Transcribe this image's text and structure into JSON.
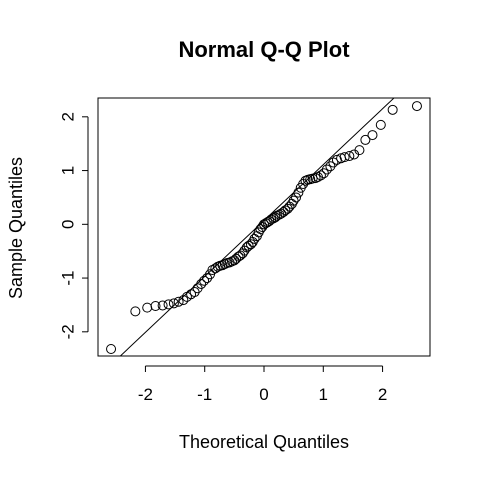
{
  "chart_data": {
    "type": "scatter",
    "title": "Normal Q-Q Plot",
    "xlabel": "Theoretical Quantiles",
    "ylabel": "Sample Quantiles",
    "xlim": [
      -2.8,
      2.8
    ],
    "ylim": [
      -2.45,
      2.35
    ],
    "x_ticks": [
      -2,
      -1,
      0,
      1,
      2
    ],
    "x_tick_labels": [
      "-2",
      "-1",
      "0",
      "1",
      "2"
    ],
    "y_ticks": [
      -2,
      -1,
      0,
      1,
      2
    ],
    "y_tick_labels": [
      "-2",
      "-1",
      "0",
      "1",
      "2"
    ],
    "grid": false,
    "reference_line": {
      "intercept": 0.07,
      "slope": 1.04
    },
    "points": [
      [
        -2.58,
        -2.32
      ],
      [
        -2.17,
        -1.62
      ],
      [
        -1.97,
        -1.55
      ],
      [
        -1.83,
        -1.52
      ],
      [
        -1.71,
        -1.51
      ],
      [
        -1.61,
        -1.49
      ],
      [
        -1.52,
        -1.47
      ],
      [
        -1.44,
        -1.44
      ],
      [
        -1.36,
        -1.41
      ],
      [
        -1.3,
        -1.35
      ],
      [
        -1.23,
        -1.3
      ],
      [
        -1.17,
        -1.26
      ],
      [
        -1.12,
        -1.19
      ],
      [
        -1.06,
        -1.11
      ],
      [
        -1.01,
        -1.05
      ],
      [
        -0.96,
        -1.0
      ],
      [
        -0.91,
        -0.93
      ],
      [
        -0.87,
        -0.85
      ],
      [
        -0.82,
        -0.82
      ],
      [
        -0.78,
        -0.79
      ],
      [
        -0.74,
        -0.77
      ],
      [
        -0.7,
        -0.76
      ],
      [
        -0.66,
        -0.74
      ],
      [
        -0.62,
        -0.72
      ],
      [
        -0.58,
        -0.71
      ],
      [
        -0.54,
        -0.69
      ],
      [
        -0.5,
        -0.67
      ],
      [
        -0.47,
        -0.64
      ],
      [
        -0.43,
        -0.6
      ],
      [
        -0.4,
        -0.58
      ],
      [
        -0.36,
        -0.54
      ],
      [
        -0.33,
        -0.49
      ],
      [
        -0.29,
        -0.43
      ],
      [
        -0.26,
        -0.4
      ],
      [
        -0.22,
        -0.37
      ],
      [
        -0.19,
        -0.33
      ],
      [
        -0.16,
        -0.27
      ],
      [
        -0.12,
        -0.22
      ],
      [
        -0.09,
        -0.15
      ],
      [
        -0.06,
        -0.09
      ],
      [
        -0.03,
        -0.05
      ],
      [
        0.0,
        0.0
      ],
      [
        0.03,
        0.02
      ],
      [
        0.06,
        0.04
      ],
      [
        0.09,
        0.06
      ],
      [
        0.12,
        0.09
      ],
      [
        0.16,
        0.11
      ],
      [
        0.19,
        0.13
      ],
      [
        0.22,
        0.16
      ],
      [
        0.26,
        0.18
      ],
      [
        0.29,
        0.2
      ],
      [
        0.33,
        0.23
      ],
      [
        0.36,
        0.26
      ],
      [
        0.4,
        0.29
      ],
      [
        0.43,
        0.33
      ],
      [
        0.47,
        0.38
      ],
      [
        0.5,
        0.44
      ],
      [
        0.54,
        0.5
      ],
      [
        0.58,
        0.59
      ],
      [
        0.62,
        0.68
      ],
      [
        0.66,
        0.75
      ],
      [
        0.7,
        0.81
      ],
      [
        0.74,
        0.83
      ],
      [
        0.78,
        0.84
      ],
      [
        0.82,
        0.85
      ],
      [
        0.87,
        0.86
      ],
      [
        0.91,
        0.88
      ],
      [
        0.96,
        0.91
      ],
      [
        1.01,
        0.95
      ],
      [
        1.06,
        1.02
      ],
      [
        1.12,
        1.08
      ],
      [
        1.17,
        1.15
      ],
      [
        1.23,
        1.2
      ],
      [
        1.3,
        1.23
      ],
      [
        1.36,
        1.25
      ],
      [
        1.44,
        1.27
      ],
      [
        1.52,
        1.3
      ],
      [
        1.61,
        1.38
      ],
      [
        1.71,
        1.57
      ],
      [
        1.83,
        1.66
      ],
      [
        1.97,
        1.85
      ],
      [
        2.17,
        2.13
      ],
      [
        2.58,
        2.2
      ]
    ]
  }
}
